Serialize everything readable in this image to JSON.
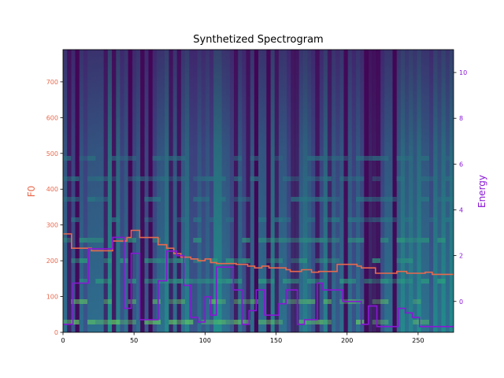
{
  "chart_data": {
    "type": "line",
    "title": "Synthetized Spectrogram",
    "background": "spectrogram-heatmap",
    "x_range": [
      0,
      275
    ],
    "x_ticks": [
      0,
      50,
      100,
      150,
      200,
      250
    ],
    "x_tick_labels": [
      "0",
      "50",
      "100",
      "150",
      "200",
      "250"
    ],
    "left_axis": {
      "label": "F0",
      "color": "#e8694d",
      "range": [
        0,
        790
      ],
      "ticks": [
        0,
        100,
        200,
        300,
        400,
        500,
        600,
        700
      ],
      "tick_labels": [
        "0",
        "100",
        "200",
        "300",
        "400",
        "500",
        "600",
        "700"
      ]
    },
    "right_axis": {
      "label": "Energy",
      "color": "#8a17d6",
      "range": [
        -1.35,
        11.0
      ],
      "ticks": [
        0,
        2,
        4,
        6,
        8,
        10
      ],
      "tick_labels": [
        "0",
        "2",
        "4",
        "6",
        "8",
        "10"
      ]
    },
    "series": [
      {
        "axis": "left",
        "color": "#e8694d",
        "x": [
          0,
          6,
          6,
          20,
          20,
          35,
          35,
          45,
          45,
          48,
          48,
          54,
          54,
          67,
          67,
          73,
          73,
          78,
          78,
          83,
          83,
          90,
          90,
          95,
          95,
          100,
          100,
          104,
          104,
          108,
          108,
          122,
          122,
          130,
          130,
          135,
          135,
          140,
          140,
          145,
          145,
          157,
          157,
          160,
          160,
          168,
          168,
          175,
          175,
          180,
          180,
          193,
          193,
          207,
          207,
          210,
          210,
          220,
          220,
          235,
          235,
          242,
          242,
          255,
          255,
          260,
          260,
          275
        ],
        "y": [
          275,
          275,
          235,
          235,
          228,
          228,
          255,
          255,
          265,
          265,
          285,
          285,
          265,
          265,
          245,
          245,
          235,
          235,
          220,
          220,
          210,
          210,
          205,
          205,
          200,
          200,
          205,
          205,
          195,
          195,
          192,
          192,
          190,
          190,
          185,
          185,
          180,
          180,
          185,
          185,
          180,
          180,
          175,
          175,
          170,
          170,
          175,
          175,
          168,
          168,
          170,
          170,
          190,
          190,
          185,
          185,
          180,
          180,
          165,
          165,
          170,
          170,
          165,
          165,
          168,
          168,
          162,
          162
        ]
      },
      {
        "axis": "right",
        "color": "#8a17d6",
        "x": [
          0,
          7,
          7,
          18,
          18,
          35,
          35,
          43,
          43,
          48,
          48,
          54,
          54,
          67,
          67,
          73,
          73,
          80,
          80,
          85,
          85,
          90,
          90,
          95,
          95,
          100,
          100,
          104,
          104,
          108,
          108,
          120,
          120,
          126,
          126,
          131,
          131,
          136,
          136,
          142,
          142,
          152,
          152,
          157,
          157,
          165,
          165,
          170,
          170,
          179,
          179,
          183,
          183,
          197,
          197,
          210,
          210,
          215,
          215,
          221,
          221,
          236,
          236,
          241,
          241,
          246,
          246,
          251,
          251,
          258,
          258,
          265,
          265,
          270,
          270,
          275
        ],
        "y": [
          -1.0,
          -1.0,
          0.8,
          0.8,
          2.3,
          2.3,
          2.8,
          2.8,
          -0.3,
          -0.3,
          2.1,
          2.1,
          -0.8,
          -0.8,
          0.9,
          0.9,
          2.2,
          2.2,
          2.0,
          2.0,
          0.7,
          0.7,
          -0.7,
          -0.7,
          -0.9,
          -0.9,
          0.2,
          0.2,
          -0.6,
          -0.6,
          1.5,
          1.5,
          0.5,
          0.5,
          -1.0,
          -1.0,
          -0.4,
          -0.4,
          0.5,
          0.5,
          -0.6,
          -0.6,
          -0.1,
          -0.1,
          0.5,
          0.5,
          -1.0,
          -1.0,
          -0.8,
          -0.8,
          0.8,
          0.8,
          0.5,
          0.5,
          0.0,
          0.0,
          -1.0,
          -1.0,
          -0.2,
          -0.2,
          -1.1,
          -1.1,
          -0.3,
          -0.3,
          -0.5,
          -0.5,
          -0.7,
          -0.7,
          -1.1,
          -1.1,
          -1.1,
          -1.1,
          -1.1,
          -1.1,
          -1.1,
          -1.1
        ]
      }
    ]
  }
}
